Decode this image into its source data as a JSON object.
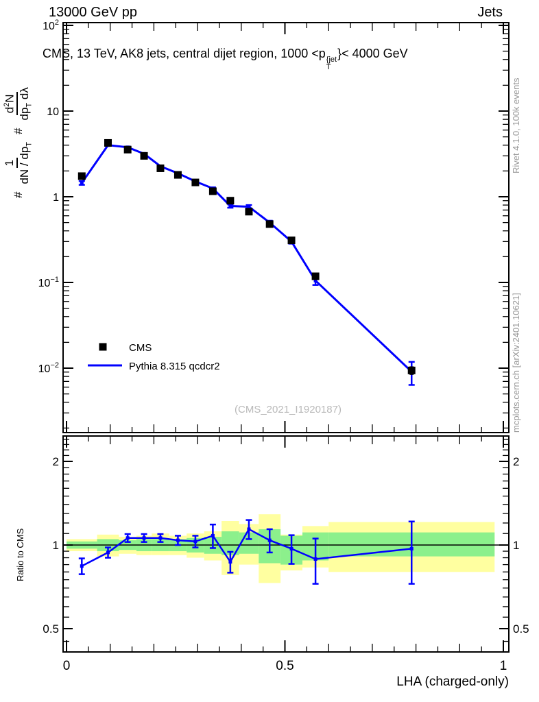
{
  "header": {
    "left": "13000 GeV pp",
    "right": "Jets"
  },
  "title": {
    "prefix": "CMS, 13 TeV, AK8 jets, central dijet region, 1000 <p",
    "sup": "{jet",
    "sub": "T",
    "suffix": "}< 4000 GeV"
  },
  "y_axis_title": {
    "hash1": "#",
    "frac1": {
      "num": "1",
      "den_base": "dN / dp",
      "den_sub": "T"
    },
    "hash2": "#",
    "frac2": {
      "num_base": "d",
      "num_sup": "2",
      "num_suf": "N",
      "den_base": "dp",
      "den_sub": "T",
      "den_suf": " dλ"
    }
  },
  "ratio_axis_label": "Ratio to CMS",
  "side_texts": {
    "right_top": "Rivet 4.1.0, 100k events",
    "right_bottom": "mcplots.cern.ch [arXiv:2401.10621]"
  },
  "watermark": "(CMS_2021_I1920187)",
  "legend": {
    "entries": [
      {
        "marker": "black-square",
        "label": "CMS"
      },
      {
        "marker": "blue-line",
        "label": "Pythia 8.315 qcdcr2"
      }
    ]
  },
  "colors": {
    "mc": "#0000ff",
    "data": "#000000",
    "band_green": "#8cf08c",
    "band_yellow": "#ffffa0",
    "watermark": "#b9b9b9",
    "side_text": "#999999",
    "axis": "#000000"
  },
  "chart_data": {
    "type": "line",
    "title": "CMS, 13 TeV, AK8 jets, central dijet region, 1000 < pT(jet) < 4000 GeV",
    "xlabel": "LHA (charged-only)",
    "ylabel": "# 1/(dN/dpT) # d2N/(dpT dlambda)",
    "x_axis": {
      "label": "LHA (charged-only)",
      "range": [
        0,
        1
      ],
      "major_ticks": [
        0,
        0.5,
        1
      ],
      "major_tick_labels": [
        "0",
        "0.5",
        "1"
      ],
      "mid_tick_step": 0.1,
      "minor_tick_step": 0.05
    },
    "main_panel": {
      "yscale": "log",
      "ylim": [
        0.00177,
        107.6
      ],
      "yticks": [
        {
          "value": 100,
          "base": "10",
          "exp": "2"
        },
        {
          "value": 10,
          "base": "10",
          "exp": ""
        },
        {
          "value": 1,
          "base": "1",
          "exp": ""
        },
        {
          "value": 0.1,
          "base": "10",
          "exp": "−1"
        },
        {
          "value": 0.01,
          "base": "10",
          "exp": "−2"
        }
      ]
    },
    "bin_edges": [
      0,
      0.07,
      0.12,
      0.16,
      0.195,
      0.235,
      0.275,
      0.315,
      0.355,
      0.395,
      0.44,
      0.49,
      0.54,
      0.6,
      0.98
    ],
    "x": [
      0.035,
      0.095,
      0.14,
      0.1775,
      0.215,
      0.255,
      0.295,
      0.335,
      0.375,
      0.4175,
      0.465,
      0.515,
      0.57,
      0.79
    ],
    "series": [
      {
        "name": "CMS",
        "style": "black-squares",
        "values": [
          1.74,
          4.25,
          3.55,
          3.0,
          2.15,
          1.8,
          1.47,
          1.16,
          0.9,
          0.67,
          0.48,
          0.31,
          0.118,
          0.0094
        ],
        "rel_err": [
          0.02,
          0.015,
          0.015,
          0.015,
          0.015,
          0.015,
          0.015,
          0.02,
          0.02,
          0.025,
          0.03,
          0.03,
          0.05,
          0.1
        ]
      },
      {
        "name": "Pythia 8.315 qcdcr2",
        "style": "blue-line",
        "values": [
          1.45,
          4.0,
          3.78,
          3.17,
          2.27,
          1.88,
          1.51,
          1.25,
          0.78,
          0.765,
          0.5,
          0.3,
          0.105,
          0.0091
        ],
        "rel_err": [
          0.05,
          0.02,
          0.02,
          0.02,
          0.02,
          0.02,
          0.025,
          0.03,
          0.045,
          0.045,
          0.05,
          0.055,
          0.11,
          0.3
        ]
      }
    ],
    "ratio_panel": {
      "label": "Ratio to CMS",
      "yscale": "log",
      "ylim": [
        0.412,
        2.47
      ],
      "yticks": [
        {
          "value": 2,
          "label": "2"
        },
        {
          "value": 1,
          "label": "1"
        },
        {
          "value": 0.5,
          "label": "0.5"
        }
      ],
      "minor_ticks": [
        0.45,
        0.55,
        0.6,
        0.65,
        0.7,
        0.75,
        0.8,
        0.85,
        0.9,
        0.95,
        1.1,
        1.2,
        1.3,
        1.4,
        1.5,
        1.6,
        1.7,
        1.8,
        1.9,
        2.1,
        2.2,
        2.3,
        2.4
      ],
      "values": [
        0.84,
        0.94,
        1.06,
        1.06,
        1.06,
        1.04,
        1.03,
        1.08,
        0.87,
        1.14,
        1.04,
        0.97,
        0.89,
        0.97
      ],
      "errors": [
        0.055,
        0.04,
        0.035,
        0.035,
        0.035,
        0.04,
        0.05,
        0.105,
        0.075,
        0.09,
        0.1,
        0.115,
        0.165,
        0.245
      ],
      "band_green": [
        [
          0.97,
          1.03
        ],
        [
          0.95,
          1.05
        ],
        [
          0.96,
          1.04
        ],
        [
          0.95,
          1.05
        ],
        [
          0.95,
          1.05
        ],
        [
          0.95,
          1.05
        ],
        [
          0.94,
          1.06
        ],
        [
          0.93,
          1.07
        ],
        [
          0.92,
          1.12
        ],
        [
          0.93,
          1.11
        ],
        [
          0.86,
          1.14
        ],
        [
          0.85,
          1.08
        ],
        [
          0.88,
          1.11
        ],
        [
          0.91,
          1.11
        ]
      ],
      "band_yellow": [
        [
          0.95,
          1.05
        ],
        [
          0.91,
          1.09
        ],
        [
          0.93,
          1.07
        ],
        [
          0.92,
          1.08
        ],
        [
          0.92,
          1.1
        ],
        [
          0.92,
          1.08
        ],
        [
          0.9,
          1.1
        ],
        [
          0.88,
          1.12
        ],
        [
          0.78,
          1.22
        ],
        [
          0.85,
          1.19
        ],
        [
          0.73,
          1.29
        ],
        [
          0.81,
          1.09
        ],
        [
          0.83,
          1.17
        ],
        [
          0.8,
          1.21
        ]
      ]
    },
    "watermark": "(CMS_2021_I1920187)"
  }
}
